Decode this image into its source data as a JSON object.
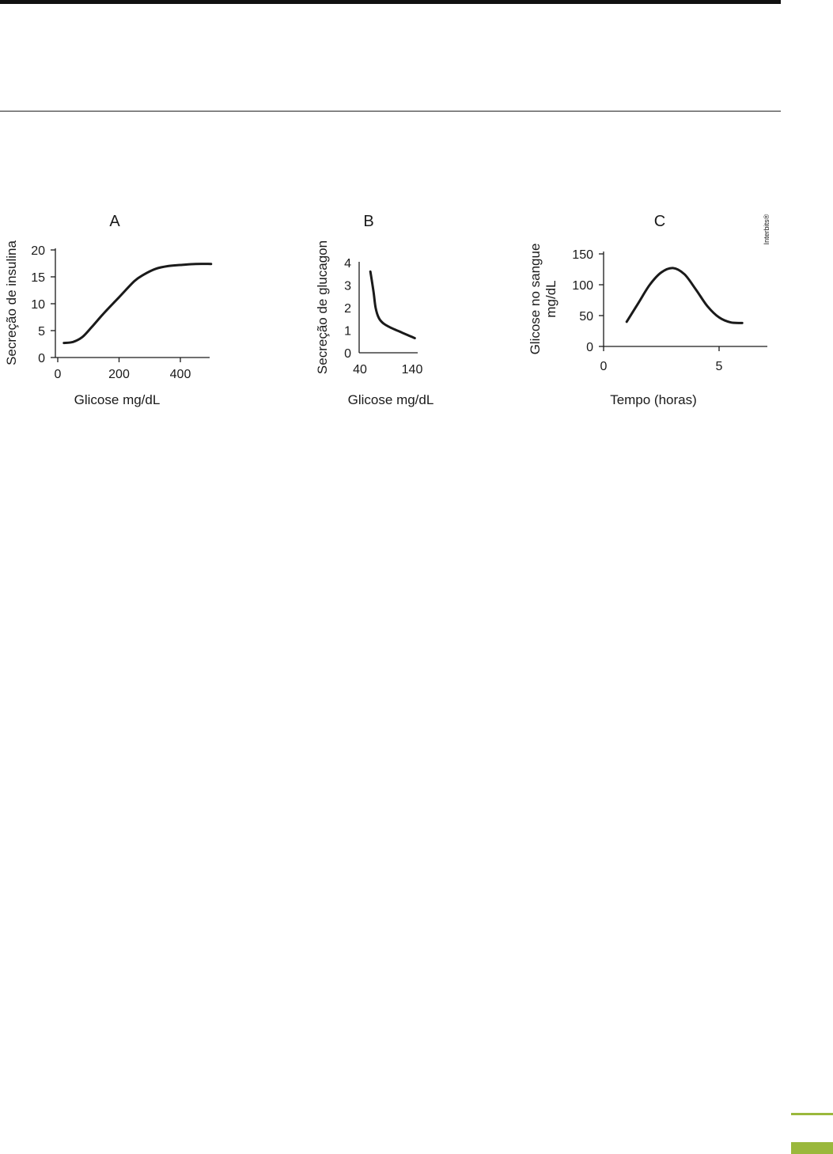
{
  "theme": {
    "accent": "#9ab83c",
    "ink": "#1a1a1a"
  },
  "credit": "Interbits®",
  "chart_data": [
    {
      "panel": "A",
      "type": "line",
      "title": "A",
      "xlabel": "Glicose mg/dL",
      "ylabel": "Secreção de insulina",
      "xlim": [
        0,
        500
      ],
      "ylim": [
        0,
        20
      ],
      "xticks": [
        0,
        200,
        400
      ],
      "yticks": [
        0,
        5,
        10,
        15,
        20
      ],
      "grid": false,
      "series": [
        {
          "name": "Secreção de insulina",
          "x": [
            20,
            50,
            80,
            110,
            150,
            200,
            250,
            280,
            320,
            360,
            400,
            450,
            500
          ],
          "y": [
            2.7,
            2.9,
            3.8,
            5.6,
            8.2,
            11.2,
            14.2,
            15.4,
            16.5,
            17.0,
            17.2,
            17.4,
            17.4
          ]
        }
      ]
    },
    {
      "panel": "B",
      "type": "line",
      "title": "B",
      "xlabel": "Glicose mg/dL",
      "ylabel": "Secreção de glucagon",
      "xlim": [
        40,
        150
      ],
      "ylim": [
        0,
        4
      ],
      "xticks": [
        40,
        140
      ],
      "yticks": [
        0,
        1,
        2,
        3,
        4
      ],
      "grid": false,
      "series": [
        {
          "name": "Secreção de glucagon",
          "x": [
            60,
            66,
            70,
            76,
            85,
            100,
            115,
            130,
            145
          ],
          "y": [
            3.6,
            2.7,
            2.0,
            1.55,
            1.3,
            1.1,
            0.95,
            0.8,
            0.65
          ]
        }
      ]
    },
    {
      "panel": "C",
      "type": "line",
      "title": "C",
      "xlabel": "Tempo (horas)",
      "ylabel": "Glicose no sangue\nmg/dL",
      "ylabel_lines": [
        "Glicose no sangue",
        "mg/dL"
      ],
      "xlim": [
        0,
        7
      ],
      "ylim": [
        0,
        150
      ],
      "xticks": [
        0,
        5
      ],
      "yticks": [
        0,
        50,
        100,
        150
      ],
      "grid": false,
      "series": [
        {
          "name": "Glicose no sangue",
          "x": [
            1.0,
            1.5,
            2.0,
            2.5,
            3.0,
            3.5,
            4.0,
            4.5,
            5.0,
            5.5,
            6.0
          ],
          "y": [
            40,
            70,
            100,
            120,
            127,
            117,
            92,
            65,
            47,
            39,
            38
          ]
        }
      ]
    }
  ]
}
